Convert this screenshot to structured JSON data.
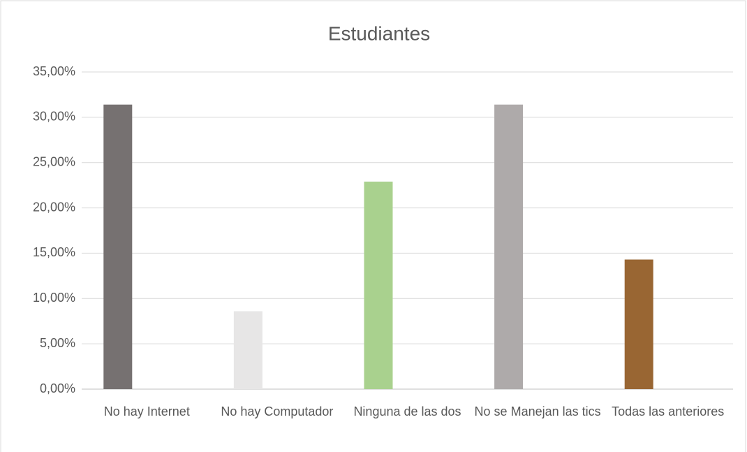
{
  "chart_data": {
    "type": "bar",
    "title": "Estudiantes",
    "categories": [
      "No hay Internet",
      "No hay Computador",
      "Ninguna de las dos",
      "No se Manejan las tics",
      "Todas las anteriores"
    ],
    "values": [
      31.4,
      8.6,
      22.9,
      31.4,
      14.3
    ],
    "colors": [
      "#767171",
      "#e7e6e6",
      "#a9d18e",
      "#aeaaaa",
      "#996633"
    ],
    "ylim": [
      0,
      35
    ],
    "yticks": [
      {
        "value": 0,
        "label": "0,00%"
      },
      {
        "value": 5,
        "label": "5,00%"
      },
      {
        "value": 10,
        "label": "10,00%"
      },
      {
        "value": 15,
        "label": "15,00%"
      },
      {
        "value": 20,
        "label": "20,00%"
      },
      {
        "value": 25,
        "label": "25,00%"
      },
      {
        "value": 30,
        "label": "30,00%"
      },
      {
        "value": 35,
        "label": "35,00%"
      }
    ],
    "grid": true
  }
}
